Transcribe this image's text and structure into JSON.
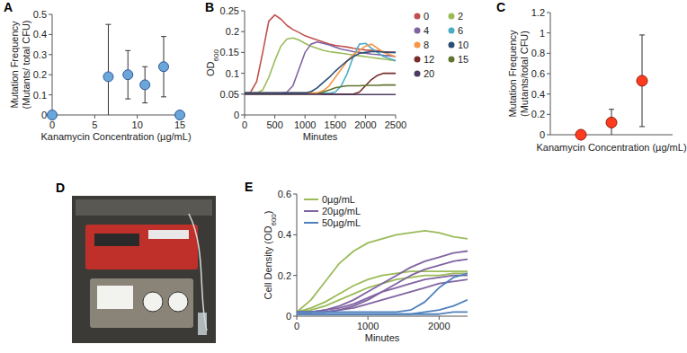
{
  "chart_data": [
    {
      "panel": "A",
      "type": "scatter",
      "x_label": "Kanamycin Concentration (µg/mL)",
      "y_label": "Mutation Frequency (Mutants/ total CFU)",
      "x": [
        0,
        6.6,
        8.9,
        10.9,
        13.1,
        15
      ],
      "values": [
        0,
        0.19,
        0.2,
        0.15,
        0.24,
        0
      ],
      "errors": [
        null,
        0.26,
        0.12,
        0.09,
        0.15,
        null
      ],
      "color": "#6aa6d9",
      "marker": "circle",
      "xlim": [
        0,
        15
      ],
      "ylim": [
        0,
        0.5
      ],
      "xticks": [
        0,
        5,
        10,
        15
      ],
      "yticks": [
        0,
        0.1,
        0.2,
        0.3,
        0.4,
        0.5
      ]
    },
    {
      "panel": "B",
      "type": "line",
      "x_label": "Minutes",
      "y_label": "OD600",
      "x": [
        0,
        100,
        200,
        300,
        400,
        500,
        600,
        700,
        800,
        900,
        1000,
        1100,
        1200,
        1300,
        1400,
        1500,
        1600,
        1700,
        1800,
        1900,
        2000,
        2100,
        2200,
        2300,
        2400,
        2500
      ],
      "series": [
        {
          "name": "0",
          "color": "#c0504d",
          "values": [
            0.053,
            0.055,
            0.08,
            0.15,
            0.225,
            0.24,
            0.23,
            0.215,
            0.205,
            0.198,
            0.19,
            0.185,
            0.18,
            0.175,
            0.17,
            0.167,
            0.165,
            0.163,
            0.16,
            0.158,
            0.156,
            0.155,
            0.154,
            0.152,
            0.151,
            0.15
          ]
        },
        {
          "name": "2",
          "color": "#9bbb59",
          "values": [
            0.052,
            0.052,
            0.053,
            0.06,
            0.09,
            0.13,
            0.165,
            0.182,
            0.185,
            0.18,
            0.172,
            0.165,
            0.16,
            0.155,
            0.152,
            0.15,
            0.148,
            0.146,
            0.144,
            0.142,
            0.14,
            0.138,
            0.136,
            0.134,
            0.132,
            0.13
          ]
        },
        {
          "name": "4",
          "color": "#8064a2",
          "values": [
            0.052,
            0.052,
            0.052,
            0.052,
            0.052,
            0.052,
            0.052,
            0.055,
            0.07,
            0.11,
            0.15,
            0.17,
            0.175,
            0.172,
            0.168,
            0.163,
            0.158,
            0.155,
            0.152,
            0.15,
            0.148,
            0.146,
            0.145,
            0.143,
            0.142,
            0.14
          ]
        },
        {
          "name": "6",
          "color": "#4bacc6",
          "values": [
            0.052,
            0.052,
            0.052,
            0.052,
            0.052,
            0.052,
            0.052,
            0.052,
            0.052,
            0.052,
            0.052,
            0.052,
            0.052,
            0.052,
            0.052,
            0.055,
            0.07,
            0.1,
            0.14,
            0.17,
            0.172,
            0.16,
            0.15,
            0.14,
            0.135,
            0.13
          ]
        },
        {
          "name": "8",
          "color": "#f79646",
          "values": [
            0.053,
            0.053,
            0.053,
            0.053,
            0.053,
            0.053,
            0.053,
            0.053,
            0.053,
            0.053,
            0.053,
            0.053,
            0.053,
            0.058,
            0.07,
            0.09,
            0.11,
            0.13,
            0.145,
            0.155,
            0.165,
            0.17,
            0.16,
            0.15,
            0.145,
            0.14
          ]
        },
        {
          "name": "10",
          "color": "#2c4d75",
          "values": [
            0.053,
            0.053,
            0.053,
            0.053,
            0.053,
            0.053,
            0.053,
            0.053,
            0.053,
            0.053,
            0.053,
            0.056,
            0.065,
            0.078,
            0.09,
            0.105,
            0.118,
            0.13,
            0.14,
            0.148,
            0.15,
            0.152,
            0.152,
            0.151,
            0.15,
            0.15
          ]
        },
        {
          "name": "12",
          "color": "#772c2a",
          "values": [
            0.05,
            0.05,
            0.05,
            0.05,
            0.05,
            0.05,
            0.05,
            0.05,
            0.05,
            0.05,
            0.05,
            0.05,
            0.05,
            0.05,
            0.05,
            0.05,
            0.05,
            0.05,
            0.05,
            0.055,
            0.07,
            0.085,
            0.095,
            0.1,
            0.1,
            0.1
          ]
        },
        {
          "name": "15",
          "color": "#5f7530",
          "values": [
            0.05,
            0.05,
            0.05,
            0.05,
            0.05,
            0.05,
            0.05,
            0.05,
            0.05,
            0.05,
            0.05,
            0.05,
            0.05,
            0.055,
            0.06,
            0.065,
            0.068,
            0.07,
            0.07,
            0.07,
            0.071,
            0.071,
            0.071,
            0.072,
            0.072,
            0.072
          ]
        },
        {
          "name": "20",
          "color": "#4d3b62",
          "values": [
            0.05,
            0.05,
            0.05,
            0.05,
            0.05,
            0.05,
            0.05,
            0.05,
            0.05,
            0.05,
            0.05,
            0.05,
            0.05,
            0.049,
            0.049,
            0.049,
            0.049,
            0.049,
            0.049,
            0.049,
            0.049,
            0.049,
            0.049,
            0.049,
            0.049,
            0.049
          ]
        }
      ],
      "marker": "circle",
      "legend": "right",
      "xlim": [
        0,
        2500
      ],
      "ylim": [
        0,
        0.25
      ],
      "xticks": [
        0,
        500,
        1000,
        1500,
        2000,
        2500
      ],
      "yticks": [
        0,
        0.05,
        0.1,
        0.15,
        0.2,
        0.25
      ]
    },
    {
      "panel": "C",
      "type": "scatter",
      "x_label": "Kanamycin Concentration (µg/mL)",
      "y_label": "Mutation Frequency (Mutants/total CFU)",
      "x": [
        0.2,
        0.4,
        0.6
      ],
      "values": [
        0,
        0.12,
        0.53
      ],
      "errors": [
        null,
        0.13,
        0.45
      ],
      "color": "#ff3b1f",
      "marker": "circle",
      "tick_labels": "y",
      "xlim": [
        0,
        0.8
      ],
      "ylim": [
        0,
        1.2
      ],
      "yticks": [
        0,
        0.2,
        0.4,
        0.6,
        0.8,
        1,
        1.2
      ]
    },
    {
      "panel": "D",
      "type": "image"
    },
    {
      "panel": "E",
      "type": "line",
      "x_label": "Minutes",
      "y_label": "Cell Density (OD600)",
      "x": [
        0,
        200,
        400,
        600,
        800,
        1000,
        1200,
        1400,
        1600,
        1800,
        2000,
        2200,
        2400
      ],
      "series": [
        {
          "name": "0µg/mL",
          "color": "#9bbb59",
          "values": [
            0.02,
            0.08,
            0.17,
            0.26,
            0.32,
            0.36,
            0.38,
            0.4,
            0.41,
            0.42,
            0.41,
            0.39,
            0.38
          ]
        },
        {
          "name": "0µg/mL",
          "color": "#9bbb59",
          "values": [
            0.02,
            0.04,
            0.07,
            0.11,
            0.15,
            0.18,
            0.2,
            0.21,
            0.22,
            0.22,
            0.22,
            0.22,
            0.22
          ]
        },
        {
          "name": "0µg/mL",
          "color": "#9bbb59",
          "values": [
            0.02,
            0.03,
            0.05,
            0.08,
            0.11,
            0.14,
            0.16,
            0.18,
            0.19,
            0.2,
            0.2,
            0.21,
            0.21
          ]
        },
        {
          "name": "20µg/mL",
          "color": "#8064a2",
          "values": [
            0.02,
            0.02,
            0.03,
            0.05,
            0.08,
            0.12,
            0.16,
            0.2,
            0.24,
            0.27,
            0.29,
            0.31,
            0.32
          ]
        },
        {
          "name": "20µg/mL",
          "color": "#8064a2",
          "values": [
            0.02,
            0.02,
            0.02,
            0.03,
            0.05,
            0.08,
            0.12,
            0.16,
            0.2,
            0.23,
            0.25,
            0.27,
            0.28
          ]
        },
        {
          "name": "20µg/mL",
          "color": "#8064a2",
          "values": [
            0.02,
            0.02,
            0.03,
            0.04,
            0.06,
            0.09,
            0.12,
            0.14,
            0.16,
            0.18,
            0.19,
            0.2,
            0.2
          ]
        },
        {
          "name": "20µg/mL",
          "color": "#8064a2",
          "values": [
            0.02,
            0.02,
            0.02,
            0.03,
            0.04,
            0.06,
            0.08,
            0.1,
            0.12,
            0.14,
            0.16,
            0.17,
            0.18
          ]
        },
        {
          "name": "50µg/mL",
          "color": "#4f81bd",
          "values": [
            0.02,
            0.02,
            0.02,
            0.02,
            0.02,
            0.02,
            0.02,
            0.02,
            0.03,
            0.07,
            0.14,
            0.19,
            0.21
          ]
        },
        {
          "name": "50µg/mL",
          "color": "#4f81bd",
          "values": [
            0.01,
            0.01,
            0.01,
            0.01,
            0.01,
            0.01,
            0.01,
            0.01,
            0.01,
            0.02,
            0.03,
            0.05,
            0.08
          ]
        },
        {
          "name": "50µg/mL",
          "color": "#4f81bd",
          "values": [
            0.01,
            0.01,
            0.01,
            0.01,
            0.01,
            0.01,
            0.01,
            0.01,
            0.01,
            0.01,
            0.01,
            0.02,
            0.02
          ]
        }
      ],
      "legend": "top-left",
      "xlim": [
        0,
        2400
      ],
      "ylim": [
        0,
        0.6
      ],
      "xticks": [
        0,
        1000,
        2000
      ],
      "yticks": [
        0,
        0.2,
        0.4,
        0.6
      ]
    }
  ]
}
